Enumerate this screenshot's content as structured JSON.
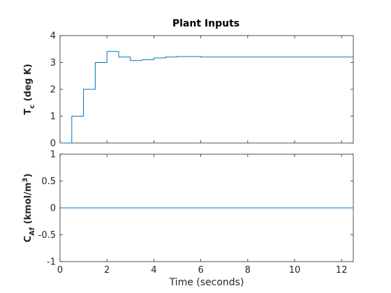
{
  "chart_data": [
    {
      "type": "line",
      "line_style": "stairs",
      "title": "Plant Inputs",
      "ylabel_main": "T",
      "ylabel_sub": "c",
      "ylabel_rest": " (deg K)",
      "xlabel": "",
      "xlim": [
        0,
        12.5
      ],
      "ylim": [
        0,
        4
      ],
      "xticks": [
        0,
        2,
        4,
        6,
        8,
        10,
        12
      ],
      "xtick_labels": [
        "",
        "",
        "",
        "",
        "",
        "",
        ""
      ],
      "yticks": [
        0,
        1,
        2,
        3,
        4
      ],
      "ytick_labels": [
        "0",
        "1",
        "2",
        "3",
        "4"
      ],
      "grid": false,
      "series": [
        {
          "color": "#0072BD",
          "x": [
            0,
            0.5,
            1.0,
            1.5,
            2.0,
            2.5,
            3.0,
            3.5,
            4.0,
            4.5,
            5.0,
            6.0,
            12.5
          ],
          "y": [
            0,
            1.0,
            2.0,
            3.0,
            3.41,
            3.2,
            3.07,
            3.1,
            3.17,
            3.2,
            3.22,
            3.2,
            3.2
          ]
        }
      ]
    },
    {
      "type": "line",
      "line_style": "stairs",
      "title": "",
      "ylabel_main": "C",
      "ylabel_sub": "Af",
      "ylabel_rest": " (kmol/m",
      "ylabel_sup": "3",
      "ylabel_end": ")",
      "xlabel": "Time (seconds)",
      "xlim": [
        0,
        12.5
      ],
      "ylim": [
        -1,
        1
      ],
      "xticks": [
        0,
        2,
        4,
        6,
        8,
        10,
        12
      ],
      "xtick_labels": [
        "0",
        "2",
        "4",
        "6",
        "8",
        "10",
        "12"
      ],
      "yticks": [
        -1,
        -0.5,
        0,
        0.5,
        1
      ],
      "ytick_labels": [
        "-1",
        "-0.5",
        "0",
        "0.5",
        "1"
      ],
      "grid": false,
      "series": [
        {
          "color": "#0072BD",
          "x": [
            0,
            12.5
          ],
          "y": [
            0,
            0
          ]
        }
      ]
    }
  ]
}
